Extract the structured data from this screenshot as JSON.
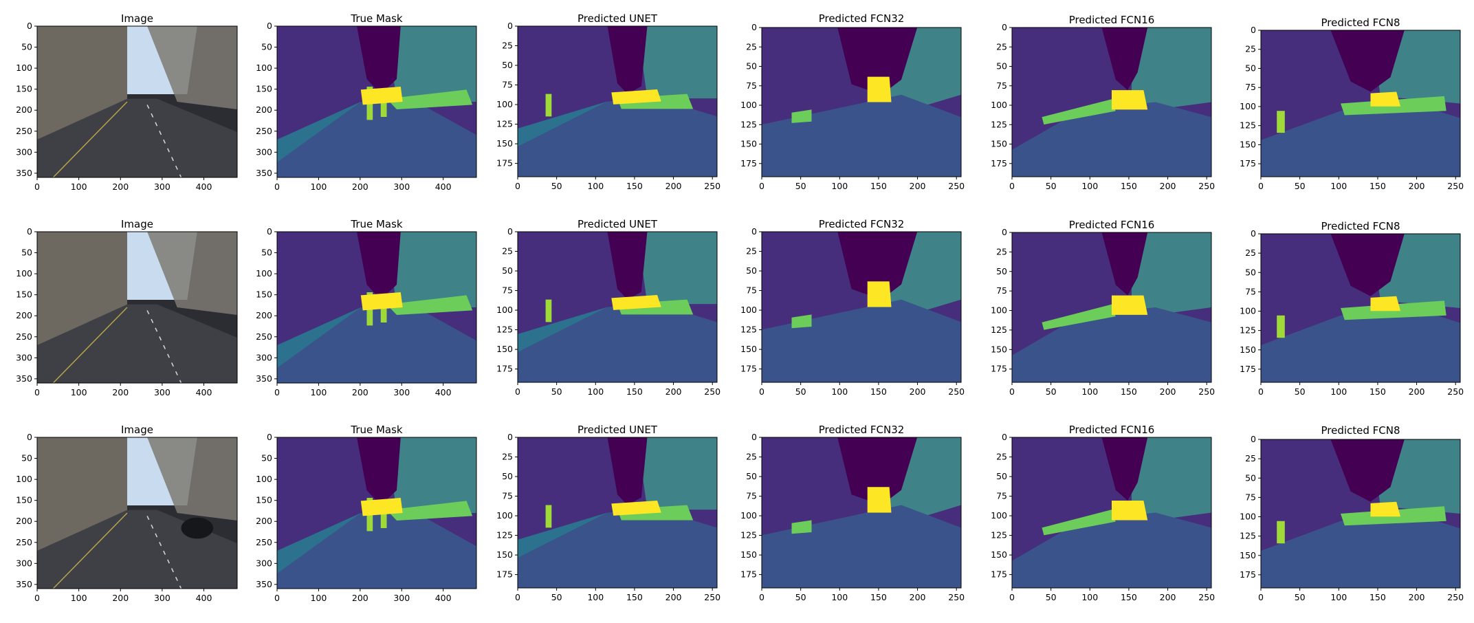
{
  "colors": {
    "sky": "#440154",
    "building": "#472e7c",
    "tree": "#3b518b",
    "road": "#3a548b",
    "vegetation": "#3f8388",
    "pole": "#2c728e",
    "pedestrian": "#a0da39",
    "car": "#6ccd5a",
    "sign": "#fde725"
  },
  "chart_data": [
    {
      "type": "image",
      "panel": "image",
      "title": "Image",
      "xlim": [
        0,
        480
      ],
      "ylim": [
        360,
        0
      ],
      "xticks": [
        0,
        100,
        200,
        300,
        400
      ],
      "yticks": [
        0,
        50,
        100,
        150,
        200,
        250,
        300,
        350
      ]
    },
    {
      "type": "heatmap",
      "panel": "mask",
      "title": "True Mask",
      "xlim": [
        0,
        480
      ],
      "ylim": [
        360,
        0
      ],
      "xticks": [
        0,
        100,
        200,
        300,
        400
      ],
      "yticks": [
        0,
        50,
        100,
        150,
        200,
        250,
        300,
        350
      ]
    },
    {
      "type": "heatmap",
      "panel": "unet",
      "title": "Predicted UNET",
      "xlim": [
        0,
        256
      ],
      "ylim": [
        192,
        0
      ],
      "xticks": [
        0,
        50,
        100,
        150,
        200,
        250
      ],
      "yticks": [
        0,
        25,
        50,
        75,
        100,
        125,
        150,
        175
      ]
    },
    {
      "type": "heatmap",
      "panel": "fcn32",
      "title": "Predicted FCN32",
      "xlim": [
        0,
        256
      ],
      "ylim": [
        192,
        0
      ],
      "xticks": [
        0,
        50,
        100,
        150,
        200,
        250
      ],
      "yticks": [
        0,
        25,
        50,
        75,
        100,
        125,
        150,
        175
      ]
    },
    {
      "type": "heatmap",
      "panel": "fcn16",
      "title": "Predicted FCN16",
      "xlim": [
        0,
        256
      ],
      "ylim": [
        192,
        0
      ],
      "xticks": [
        0,
        50,
        100,
        150,
        200,
        250
      ],
      "yticks": [
        0,
        25,
        50,
        75,
        100,
        125,
        150,
        175
      ]
    },
    {
      "type": "heatmap",
      "panel": "fcn8",
      "title": "Predicted FCN8",
      "xlim": [
        0,
        256
      ],
      "ylim": [
        192,
        0
      ],
      "xticks": [
        0,
        50,
        100,
        150,
        200,
        250
      ],
      "yticks": [
        0,
        25,
        50,
        75,
        100,
        125,
        150,
        175
      ]
    }
  ]
}
